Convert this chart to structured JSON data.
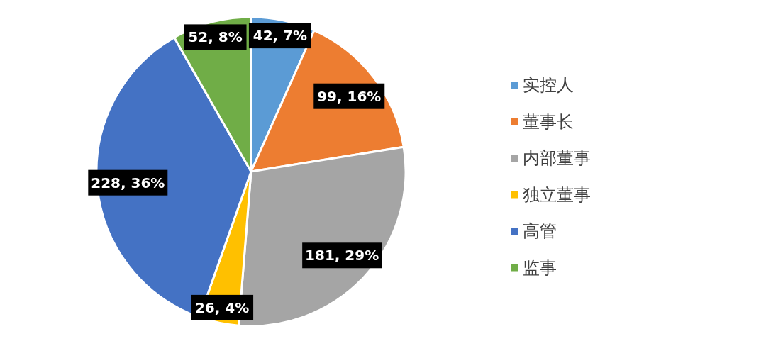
{
  "chart_data": {
    "type": "pie",
    "categories": [
      "实控人",
      "董事长",
      "内部董事",
      "独立董事",
      "高管",
      "监事"
    ],
    "values": [
      42,
      99,
      181,
      26,
      228,
      52
    ],
    "colors": [
      "#5b9bd5",
      "#ed7d31",
      "#a5a5a5",
      "#ffc000",
      "#4472c4",
      "#70ad47"
    ],
    "value_labels": [
      "42, 7%",
      "99, 16%",
      "181, 29%",
      "26, 4%",
      "228, 36%",
      "52, 8%"
    ],
    "legend": "right"
  }
}
